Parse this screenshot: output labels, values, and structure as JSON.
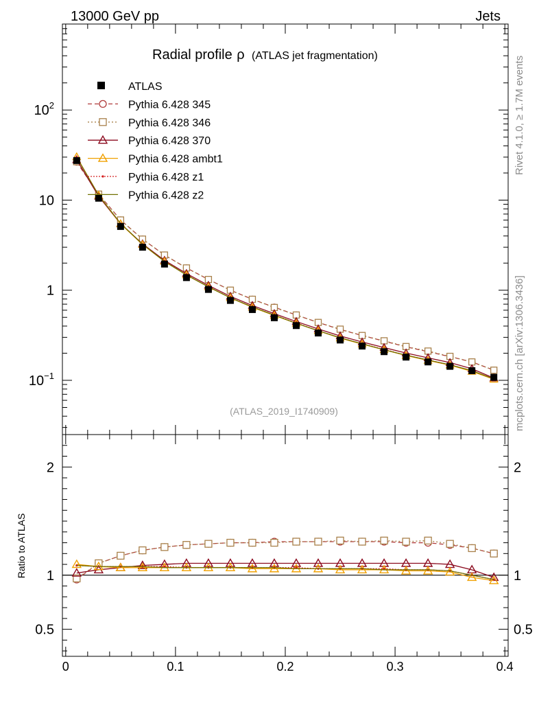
{
  "header": {
    "left": "13000 GeV pp",
    "right": "Jets"
  },
  "side_labels": {
    "top": "Rivet 4.1.0, ≥ 1.7M events",
    "bottom": "mcplots.cern.ch [arXiv:1306.3436]"
  },
  "colors": {
    "p345": "#b03a3a",
    "p346": "#a8804a",
    "p370": "#8b0a1e",
    "ambt1": "#f0a000",
    "z1": "#d42020",
    "z2": "#707000"
  },
  "chart_data": {
    "type": "line",
    "title": "Radial profile",
    "title_symbol": "ρ",
    "title_suffix": "(ATLAS jet fragmentation)",
    "watermark": "(ATLAS_2019_I1740909)",
    "x": [
      0.01,
      0.03,
      0.05,
      0.07,
      0.09,
      0.11,
      0.13,
      0.15,
      0.17,
      0.19,
      0.21,
      0.23,
      0.25,
      0.27,
      0.29,
      0.31,
      0.33,
      0.35,
      0.37,
      0.39
    ],
    "xlim": [
      -0.003,
      0.403
    ],
    "xticks": [
      "0",
      "0.1",
      "0.2",
      "0.3",
      "0.4"
    ],
    "xtick_values": [
      0,
      0.1,
      0.2,
      0.3,
      0.4
    ],
    "main": {
      "ylim": [
        0.025,
        900
      ],
      "yscale": "log",
      "ytick_labels": [
        {
          "value": 0.1,
          "base": "10",
          "exp": "−1"
        },
        {
          "value": 1,
          "base": "1",
          "exp": ""
        },
        {
          "value": 10,
          "base": "10",
          "exp": ""
        },
        {
          "value": 100,
          "base": "10",
          "exp": "2"
        }
      ]
    },
    "ratio": {
      "ylabel": "Ratio to ATLAS",
      "ylim": [
        0.25,
        2.3
      ],
      "yticks": [
        0.5,
        1,
        2
      ],
      "ytick_labels": [
        "0.5",
        "1",
        "2"
      ]
    },
    "data": {
      "name": "ATLAS",
      "values": [
        27.5,
        10.5,
        5.1,
        3.0,
        1.95,
        1.38,
        1.02,
        0.77,
        0.61,
        0.495,
        0.405,
        0.335,
        0.28,
        0.24,
        0.208,
        0.181,
        0.16,
        0.143,
        0.128,
        0.108
      ]
    },
    "series": [
      {
        "name": "Pythia 6.428 345",
        "marker": "circle-open",
        "dash": "6,4",
        "color_key": "p345",
        "ratio": [
          0.96,
          1.11,
          1.18,
          1.23,
          1.26,
          1.28,
          1.29,
          1.3,
          1.3,
          1.31,
          1.31,
          1.31,
          1.31,
          1.31,
          1.31,
          1.3,
          1.3,
          1.28,
          1.25,
          1.2
        ]
      },
      {
        "name": "Pythia 6.428 346",
        "marker": "square-open",
        "dash": "2,3",
        "color_key": "p346",
        "ratio": [
          0.97,
          1.11,
          1.18,
          1.23,
          1.26,
          1.28,
          1.29,
          1.3,
          1.3,
          1.3,
          1.31,
          1.31,
          1.32,
          1.31,
          1.32,
          1.31,
          1.32,
          1.29,
          1.25,
          1.2
        ]
      },
      {
        "name": "Pythia 6.428 370",
        "marker": "triangle-open",
        "dash": "",
        "color_key": "p370",
        "ratio": [
          1.02,
          1.05,
          1.07,
          1.09,
          1.1,
          1.11,
          1.11,
          1.11,
          1.11,
          1.11,
          1.11,
          1.11,
          1.11,
          1.11,
          1.11,
          1.11,
          1.11,
          1.1,
          1.05,
          0.98
        ]
      },
      {
        "name": "Pythia 6.428 ambt1",
        "marker": "triangle-open",
        "dash": "",
        "color_key": "ambt1",
        "ratio": [
          1.1,
          1.08,
          1.07,
          1.07,
          1.07,
          1.07,
          1.07,
          1.07,
          1.06,
          1.06,
          1.06,
          1.06,
          1.05,
          1.05,
          1.05,
          1.04,
          1.04,
          1.03,
          0.98,
          0.95
        ]
      },
      {
        "name": "Pythia 6.428 z1",
        "marker": "dot",
        "dash": "2,2",
        "color_key": "z1",
        "ratio": [
          1.09,
          1.08,
          1.08,
          1.08,
          1.08,
          1.07,
          1.07,
          1.07,
          1.07,
          1.07,
          1.07,
          1.06,
          1.06,
          1.06,
          1.06,
          1.05,
          1.05,
          1.04,
          1.0,
          0.96
        ]
      },
      {
        "name": "Pythia 6.428 z2",
        "marker": "line",
        "dash": "",
        "color_key": "z2",
        "ratio": [
          1.09,
          1.08,
          1.08,
          1.08,
          1.07,
          1.07,
          1.07,
          1.07,
          1.07,
          1.07,
          1.06,
          1.06,
          1.06,
          1.06,
          1.05,
          1.05,
          1.05,
          1.04,
          1.0,
          0.96
        ]
      }
    ]
  }
}
